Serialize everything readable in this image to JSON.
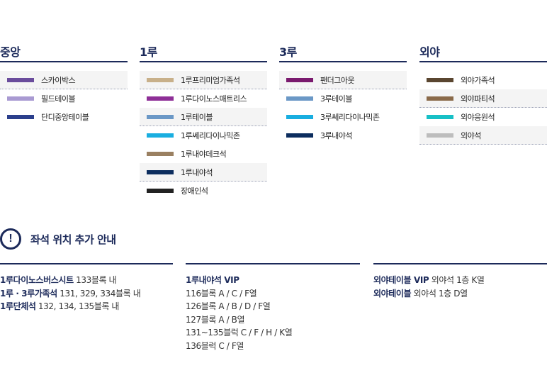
{
  "sections": [
    {
      "title": "중앙",
      "items": [
        {
          "label": "스카이박스",
          "color": "#6a4c9c"
        },
        {
          "label": "필드테이블",
          "color": "#a99ad2"
        },
        {
          "label": "단디중앙테이블",
          "color": "#2b3f8c"
        }
      ]
    },
    {
      "title": "1루",
      "items": [
        {
          "label": "1루프리미엄가족석",
          "color": "#c8b08a"
        },
        {
          "label": "1루다이노스매트리스",
          "color": "#8e2f97"
        },
        {
          "label": "1루테이블",
          "color": "#6b98c6"
        },
        {
          "label": "1루쎄리다이나믹존",
          "color": "#19aee0"
        },
        {
          "label": "1루내야데크석",
          "color": "#9a8061"
        },
        {
          "label": "1루내야석",
          "color": "#0c2d5e"
        },
        {
          "label": "장애인석",
          "color": "#222222"
        }
      ]
    },
    {
      "title": "3루",
      "items": [
        {
          "label": "팬더그아웃",
          "color": "#7a1a6e"
        },
        {
          "label": "3루테이블",
          "color": "#6b98c6"
        },
        {
          "label": "3루쎄리다이나믹존",
          "color": "#19aee0"
        },
        {
          "label": "3루내야석",
          "color": "#0c2d5e"
        }
      ]
    },
    {
      "title": "외야",
      "items": [
        {
          "label": "외야가족석",
          "color": "#5a4630"
        },
        {
          "label": "외야파티석",
          "color": "#8a6a4a"
        },
        {
          "label": "외야응원석",
          "color": "#17c0c6"
        },
        {
          "label": "외야석",
          "color": "#bdbdbd"
        }
      ]
    }
  ],
  "notice": {
    "icon": "!",
    "title": "좌석 위치 추가 안내"
  },
  "notice_columns": [
    [
      {
        "bold": "1루다이노스버스시트",
        "text": " 133블록 내"
      },
      {
        "bold": "1루 · 3루가족석",
        "text": " 131, 329, 334블록 내"
      },
      {
        "bold": "1루단체석",
        "text": " 132, 134, 135블록 내"
      }
    ],
    [
      {
        "bold": "1루내야석 VIP",
        "text": ""
      },
      {
        "bold": "",
        "text": "116블록 A / C / F열"
      },
      {
        "bold": "",
        "text": "126블록 A / B / D / F열"
      },
      {
        "bold": "",
        "text": "127블록 A / B열"
      },
      {
        "bold": "",
        "text": "131~135블럭 C / F / H / K열"
      },
      {
        "bold": "",
        "text": "136블럭 C / F열"
      }
    ],
    [
      {
        "bold": "외야테이블 VIP",
        "text": " 외야석 1층 K열"
      },
      {
        "bold": "외야테이블",
        "text": " 외야석 1층 D열"
      }
    ]
  ]
}
